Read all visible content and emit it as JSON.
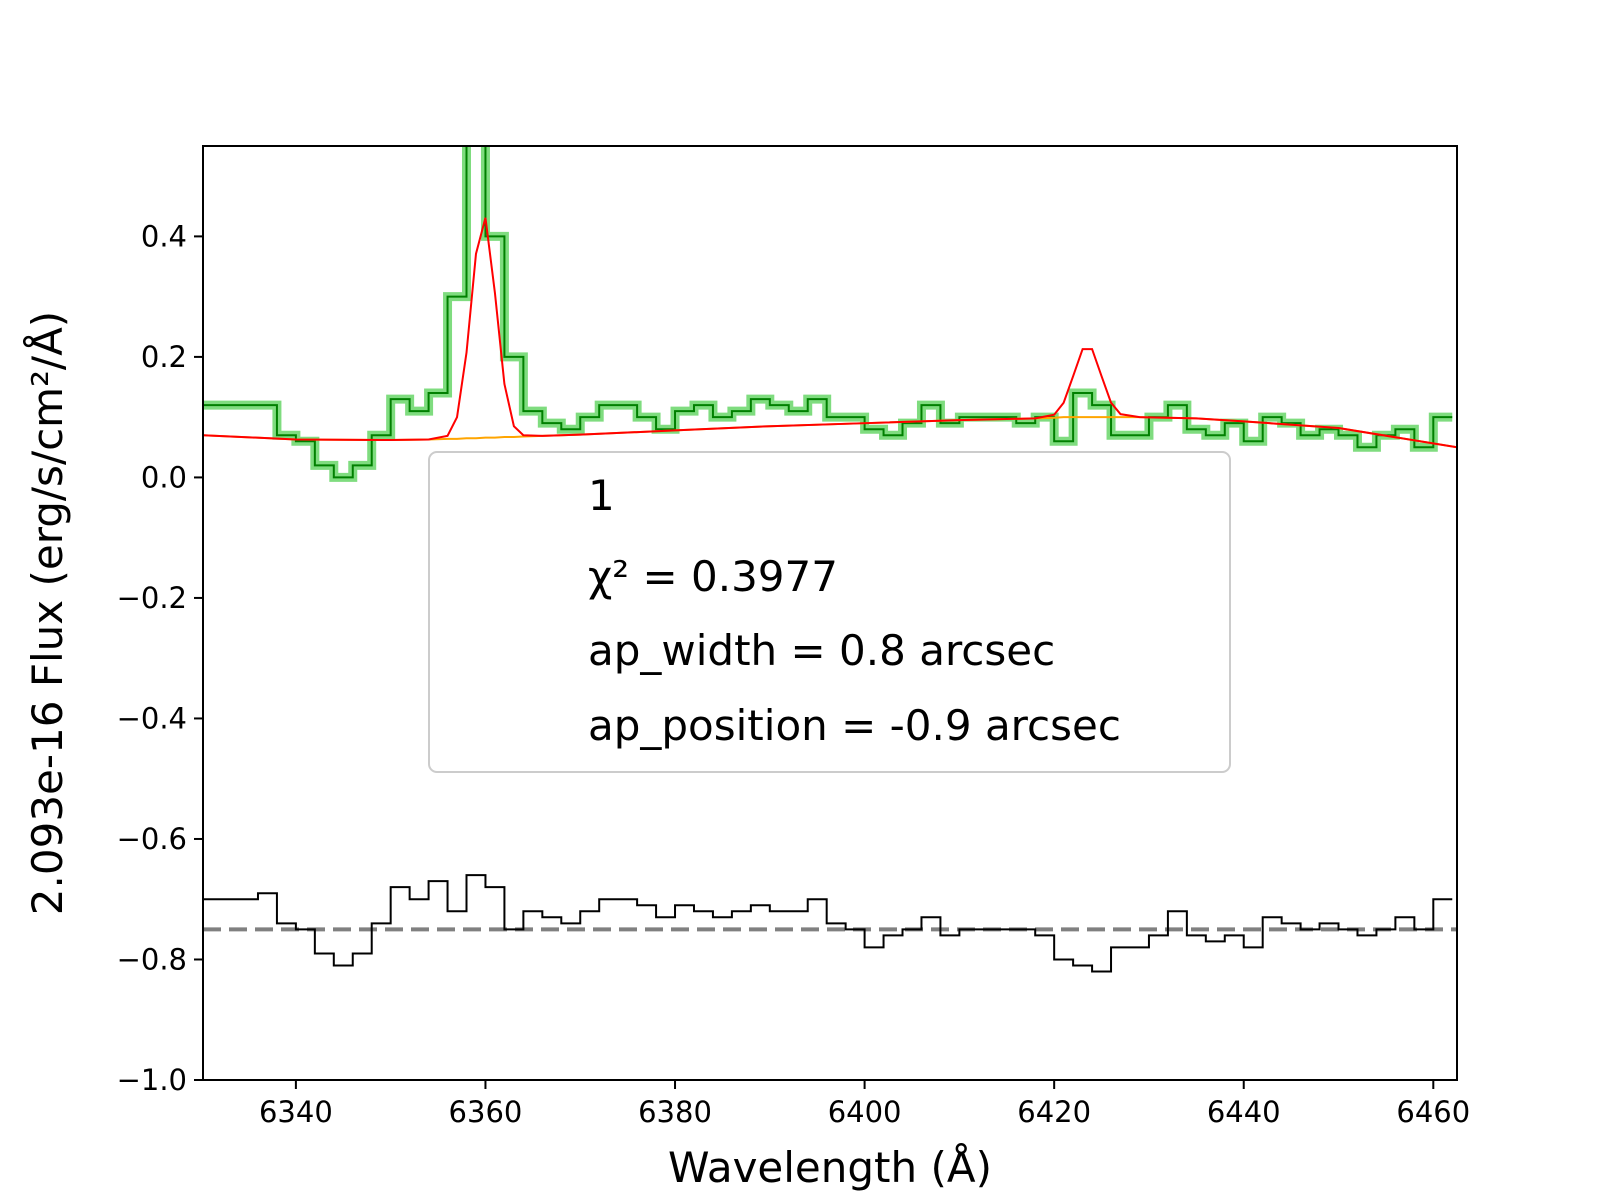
{
  "chart_data": {
    "type": "step",
    "xlabel": "Wavelength (Å)",
    "ylabel": "2.093e-16  Flux (erg/s/cm²/Å)",
    "xlim": [
      6330.2,
      6462.5
    ],
    "ylim": [
      -1.0,
      0.55
    ],
    "xticks": [
      6340,
      6360,
      6380,
      6400,
      6420,
      6440,
      6460
    ],
    "yticks": [
      0.4,
      0.2,
      {
        "value": 0.0,
        "label": "0.0"
      },
      {
        "value": -0.2,
        "label": "−0.2"
      },
      {
        "value": -0.4,
        "label": "−0.4"
      },
      {
        "value": -0.6,
        "label": "−0.6"
      },
      {
        "value": -0.8,
        "label": "−0.8"
      },
      {
        "value": -1.0,
        "label": "−1.0"
      }
    ],
    "x": [
      6331,
      6333,
      6335,
      6337,
      6339,
      6341,
      6343,
      6345,
      6347,
      6349,
      6351,
      6353,
      6355,
      6357,
      6359,
      6361,
      6363,
      6365,
      6367,
      6369,
      6371,
      6373,
      6375,
      6377,
      6379,
      6381,
      6383,
      6385,
      6387,
      6389,
      6391,
      6393,
      6395,
      6397,
      6399,
      6401,
      6403,
      6405,
      6407,
      6409,
      6411,
      6413,
      6415,
      6417,
      6419,
      6421,
      6423,
      6425,
      6427,
      6429,
      6431,
      6433,
      6435,
      6437,
      6439,
      6441,
      6443,
      6445,
      6447,
      6449,
      6451,
      6453,
      6455,
      6457,
      6459,
      6461
    ],
    "series": [
      {
        "color": "#008000",
        "halo": "#7fdc7f",
        "drawstyle": "steps-mid",
        "values": [
          0.12,
          0.12,
          0.12,
          0.12,
          0.07,
          0.06,
          0.02,
          0.0,
          0.02,
          0.07,
          0.13,
          0.11,
          0.14,
          0.3,
          0.6,
          0.4,
          0.2,
          0.11,
          0.09,
          0.08,
          0.1,
          0.12,
          0.12,
          0.1,
          0.08,
          0.11,
          0.12,
          0.1,
          0.11,
          0.13,
          0.12,
          0.11,
          0.13,
          0.1,
          0.1,
          0.08,
          0.07,
          0.09,
          0.12,
          0.09,
          0.1,
          0.1,
          0.1,
          0.09,
          0.1,
          0.06,
          0.14,
          0.12,
          0.07,
          0.07,
          0.1,
          0.12,
          0.08,
          0.07,
          0.09,
          0.06,
          0.1,
          0.09,
          0.07,
          0.08,
          0.07,
          0.05,
          0.07,
          0.08,
          0.05,
          0.1
        ]
      },
      {
        "color": "#000000",
        "drawstyle": "steps-mid",
        "values": [
          -0.7,
          -0.7,
          -0.7,
          -0.69,
          -0.74,
          -0.75,
          -0.79,
          -0.81,
          -0.79,
          -0.74,
          -0.68,
          -0.7,
          -0.67,
          -0.72,
          -0.66,
          -0.68,
          -0.75,
          -0.72,
          -0.73,
          -0.74,
          -0.72,
          -0.7,
          -0.7,
          -0.71,
          -0.73,
          -0.71,
          -0.72,
          -0.73,
          -0.72,
          -0.71,
          -0.72,
          -0.72,
          -0.7,
          -0.74,
          -0.75,
          -0.78,
          -0.76,
          -0.75,
          -0.73,
          -0.76,
          -0.75,
          -0.75,
          -0.75,
          -0.75,
          -0.76,
          -0.8,
          -0.81,
          -0.82,
          -0.78,
          -0.78,
          -0.76,
          -0.72,
          -0.76,
          -0.77,
          -0.76,
          -0.78,
          -0.73,
          -0.74,
          -0.75,
          -0.74,
          -0.75,
          -0.76,
          -0.75,
          -0.73,
          -0.75,
          -0.7
        ]
      },
      {
        "color": "#ffa500",
        "drawstyle": "line",
        "x": [
          6330.2,
          6340,
          6350,
          6354,
          6356,
          6357,
          6358,
          6359,
          6360,
          6361,
          6362,
          6363,
          6364,
          6366,
          6370,
          6380,
          6390,
          6400,
          6410,
          6418,
          6420,
          6421,
          6422,
          6423,
          6424,
          6425,
          6426,
          6427,
          6429,
          6435,
          6440,
          6450,
          6462.5
        ],
        "values": [
          0.07,
          0.063,
          0.062,
          0.063,
          0.064,
          0.064,
          0.065,
          0.065,
          0.066,
          0.066,
          0.067,
          0.067,
          0.068,
          0.069,
          0.071,
          0.078,
          0.085,
          0.09,
          0.095,
          0.098,
          0.099,
          0.1,
          0.1,
          0.1,
          0.1,
          0.1,
          0.1,
          0.1,
          0.1,
          0.098,
          0.093,
          0.082,
          0.05
        ]
      },
      {
        "color": "#ff0000",
        "drawstyle": "line",
        "x": [
          6330.2,
          6340,
          6350,
          6354,
          6356,
          6357,
          6358,
          6359,
          6360,
          6361,
          6362,
          6363,
          6364,
          6366,
          6370,
          6380,
          6390,
          6400,
          6410,
          6418,
          6420,
          6421,
          6422,
          6423,
          6424,
          6425,
          6426,
          6427,
          6429,
          6435,
          6440,
          6450,
          6462.5
        ],
        "values": [
          0.07,
          0.063,
          0.062,
          0.063,
          0.069,
          0.1,
          0.207,
          0.371,
          0.431,
          0.306,
          0.155,
          0.085,
          0.07,
          0.069,
          0.071,
          0.078,
          0.085,
          0.09,
          0.095,
          0.098,
          0.104,
          0.124,
          0.168,
          0.213,
          0.213,
          0.168,
          0.124,
          0.105,
          0.1,
          0.098,
          0.093,
          0.082,
          0.05
        ]
      }
    ],
    "hline": {
      "y": -0.75,
      "color": "#808080",
      "dashed": true
    },
    "annotation": [
      "1",
      "χ² = 0.3977",
      "ap_width = 0.8 arcsec",
      "ap_position = -0.9 arcsec"
    ]
  }
}
